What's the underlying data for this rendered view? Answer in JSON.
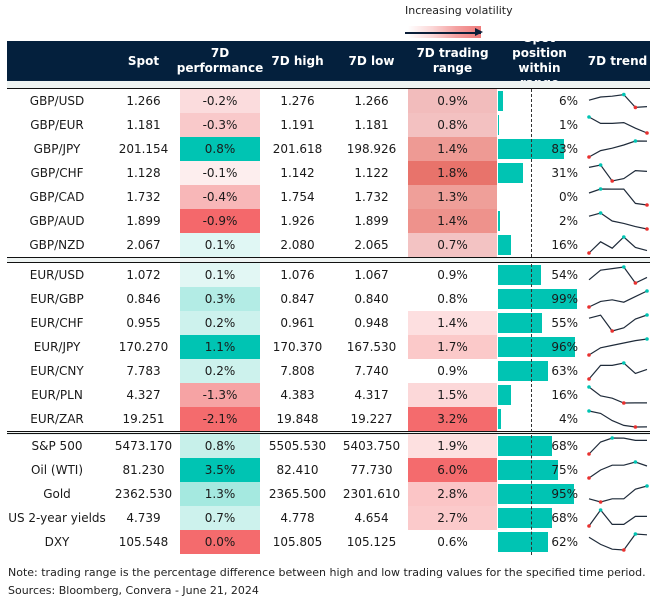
{
  "legend": {
    "label": "Increasing volatility"
  },
  "header": {
    "spot": "Spot",
    "perf": "7D performance",
    "high": "7D high",
    "low": "7D low",
    "range": "7D trading range",
    "position": "Spot position within range",
    "trend": "7D trend"
  },
  "colors": {
    "header": "#04203d",
    "teal": "#00c4b3",
    "red": "#e8312f",
    "line": "#1f2b3a"
  },
  "sections": [
    [
      {
        "name": "GBP/USD",
        "spot": "1.266",
        "perf": "-0.2%",
        "perf_bg": "#fbdcdd",
        "high": "1.276",
        "low": "1.266",
        "range": "0.9%",
        "range_bg": "#f2bcbc",
        "pos": 6,
        "pos_label": "6%",
        "trend": [
          0.55,
          0.75,
          0.8,
          0.9,
          0.1,
          0.15
        ]
      },
      {
        "name": "GBP/EUR",
        "spot": "1.181",
        "perf": "-0.3%",
        "perf_bg": "#f9c9ca",
        "high": "1.191",
        "low": "1.181",
        "range": "0.8%",
        "range_bg": "#f3c1c1",
        "pos": 1,
        "pos_label": "1%",
        "trend": [
          1,
          0.6,
          0.6,
          0.65,
          0.3,
          0
        ]
      },
      {
        "name": "GBP/JPY",
        "spot": "201.154",
        "perf": "0.8%",
        "perf_bg": "#00c4b3",
        "high": "201.618",
        "low": "198.926",
        "range": "1.4%",
        "range_bg": "#ee9a94",
        "pos": 83,
        "pos_label": "83%",
        "trend": [
          0,
          0.4,
          0.55,
          0.75,
          1,
          0.99
        ]
      },
      {
        "name": "GBP/CHF",
        "spot": "1.128",
        "perf": "-0.1%",
        "perf_bg": "#fdeeee",
        "high": "1.142",
        "low": "1.122",
        "range": "1.8%",
        "range_bg": "#e8736b",
        "pos": 31,
        "pos_label": "31%",
        "trend": [
          0.85,
          1,
          0,
          0.15,
          0.65,
          0.6
        ]
      },
      {
        "name": "GBP/CAD",
        "spot": "1.732",
        "perf": "-0.4%",
        "perf_bg": "#f8b7b8",
        "high": "1.754",
        "low": "1.732",
        "range": "1.3%",
        "range_bg": "#ef9f99",
        "pos": 0,
        "pos_label": "0%",
        "trend": [
          0.75,
          1,
          0.99,
          0.99,
          0.1,
          0
        ]
      },
      {
        "name": "GBP/AUD",
        "spot": "1.899",
        "perf": "-0.9%",
        "perf_bg": "#f4686b",
        "high": "1.926",
        "low": "1.899",
        "range": "1.4%",
        "range_bg": "#ee928c",
        "pos": 2,
        "pos_label": "2%",
        "trend": [
          0.8,
          1,
          0.5,
          0.35,
          0.15,
          0
        ]
      },
      {
        "name": "GBP/NZD",
        "spot": "2.067",
        "perf": "0.1%",
        "perf_bg": "#e0f7f4",
        "high": "2.080",
        "low": "2.065",
        "range": "0.7%",
        "range_bg": "#f3c3c3",
        "pos": 16,
        "pos_label": "16%",
        "trend": [
          0,
          0.7,
          0.3,
          1,
          0.35,
          0.15
        ]
      }
    ],
    [
      {
        "name": "EUR/USD",
        "spot": "1.072",
        "perf": "0.1%",
        "perf_bg": "#e2f7f4",
        "high": "1.076",
        "low": "1.067",
        "range": "0.9%",
        "range_bg": "#ffffff",
        "pos": 54,
        "pos_label": "54%",
        "trend": [
          0.2,
          0.8,
          0.9,
          1,
          0,
          0.35
        ]
      },
      {
        "name": "EUR/GBP",
        "spot": "0.846",
        "perf": "0.3%",
        "perf_bg": "#b3ece5",
        "high": "0.847",
        "low": "0.840",
        "range": "0.8%",
        "range_bg": "#ffffff",
        "pos": 99,
        "pos_label": "99%",
        "trend": [
          0,
          0.35,
          0.45,
          0.3,
          0.65,
          1
        ]
      },
      {
        "name": "EUR/CHF",
        "spot": "0.955",
        "perf": "0.2%",
        "perf_bg": "#cdf2ed",
        "high": "0.961",
        "low": "0.948",
        "range": "1.4%",
        "range_bg": "#fddfe0",
        "pos": 55,
        "pos_label": "55%",
        "trend": [
          0.8,
          0.99,
          0,
          0.2,
          0.75,
          1
        ]
      },
      {
        "name": "EUR/JPY",
        "spot": "170.270",
        "perf": "1.1%",
        "perf_bg": "#00c4b3",
        "high": "170.370",
        "low": "167.530",
        "range": "1.7%",
        "range_bg": "#fbc9c9",
        "pos": 96,
        "pos_label": "96%",
        "trend": [
          0,
          0.45,
          0.6,
          0.75,
          0.9,
          1
        ]
      },
      {
        "name": "EUR/CNY",
        "spot": "7.783",
        "perf": "0.2%",
        "perf_bg": "#cdf2ed",
        "high": "7.808",
        "low": "7.740",
        "range": "0.9%",
        "range_bg": "#ffffff",
        "pos": 63,
        "pos_label": "63%",
        "trend": [
          0,
          0.85,
          0.85,
          1,
          0.35,
          0.6
        ]
      },
      {
        "name": "EUR/PLN",
        "spot": "4.327",
        "perf": "-1.3%",
        "perf_bg": "#f6a3a4",
        "high": "4.383",
        "low": "4.317",
        "range": "1.5%",
        "range_bg": "#fcd8d9",
        "pos": 16,
        "pos_label": "16%",
        "trend": [
          1,
          0.45,
          0.3,
          0,
          0.01,
          0.01
        ]
      },
      {
        "name": "EUR/ZAR",
        "spot": "19.251",
        "perf": "-2.1%",
        "perf_bg": "#f46b6d",
        "high": "19.848",
        "low": "19.227",
        "range": "3.2%",
        "range_bg": "#f46b6d",
        "pos": 4,
        "pos_label": "4%",
        "trend": [
          1,
          0.85,
          0.4,
          0.1,
          0,
          0.01
        ]
      }
    ],
    [
      {
        "name": "S&P 500",
        "spot": "5473.170",
        "perf": "0.8%",
        "perf_bg": "#c7f0ea",
        "high": "5505.530",
        "low": "5403.750",
        "range": "1.9%",
        "range_bg": "#fde0e0",
        "pos": 68,
        "pos_label": "68%",
        "trend": [
          0,
          0.75,
          1,
          0.99,
          0.85,
          0.85
        ]
      },
      {
        "name": "Oil (WTI)",
        "spot": "81.230",
        "perf": "3.5%",
        "perf_bg": "#00c4b3",
        "high": "82.410",
        "low": "77.730",
        "range": "6.0%",
        "range_bg": "#f46b6d",
        "pos": 75,
        "pos_label": "75%",
        "trend": [
          0,
          0.5,
          0.8,
          0.8,
          1,
          0.75
        ]
      },
      {
        "name": "Gold",
        "spot": "2362.530",
        "perf": "1.3%",
        "perf_bg": "#a5e9e0",
        "high": "2365.500",
        "low": "2301.610",
        "range": "2.8%",
        "range_bg": "#fbc5c6",
        "pos": 95,
        "pos_label": "95%",
        "trend": [
          0.2,
          0,
          0.2,
          0.2,
          0.8,
          1
        ]
      },
      {
        "name": "US 2-year yields",
        "spot": "4.739",
        "perf": "0.7%",
        "perf_bg": "#cdf2ed",
        "high": "4.778",
        "low": "4.654",
        "range": "2.7%",
        "range_bg": "#fbcacb",
        "pos": 68,
        "pos_label": "68%",
        "trend": [
          0,
          1,
          0.1,
          0.1,
          0.6,
          0.6
        ]
      },
      {
        "name": "DXY",
        "spot": "105.548",
        "perf": "0.0%",
        "perf_bg": "#f46b6d",
        "high": "105.805",
        "low": "105.125",
        "range": "0.6%",
        "range_bg": "#ffffff",
        "pos": 62,
        "pos_label": "62%",
        "trend": [
          0.8,
          0.35,
          0.05,
          0,
          1,
          0.95
        ]
      }
    ]
  ],
  "footer": {
    "note": "Note: trading range is the percentage difference between high and low trading values for the specified time period.",
    "sources": "Sources: Bloomberg, Convera - June 21, 2024"
  }
}
